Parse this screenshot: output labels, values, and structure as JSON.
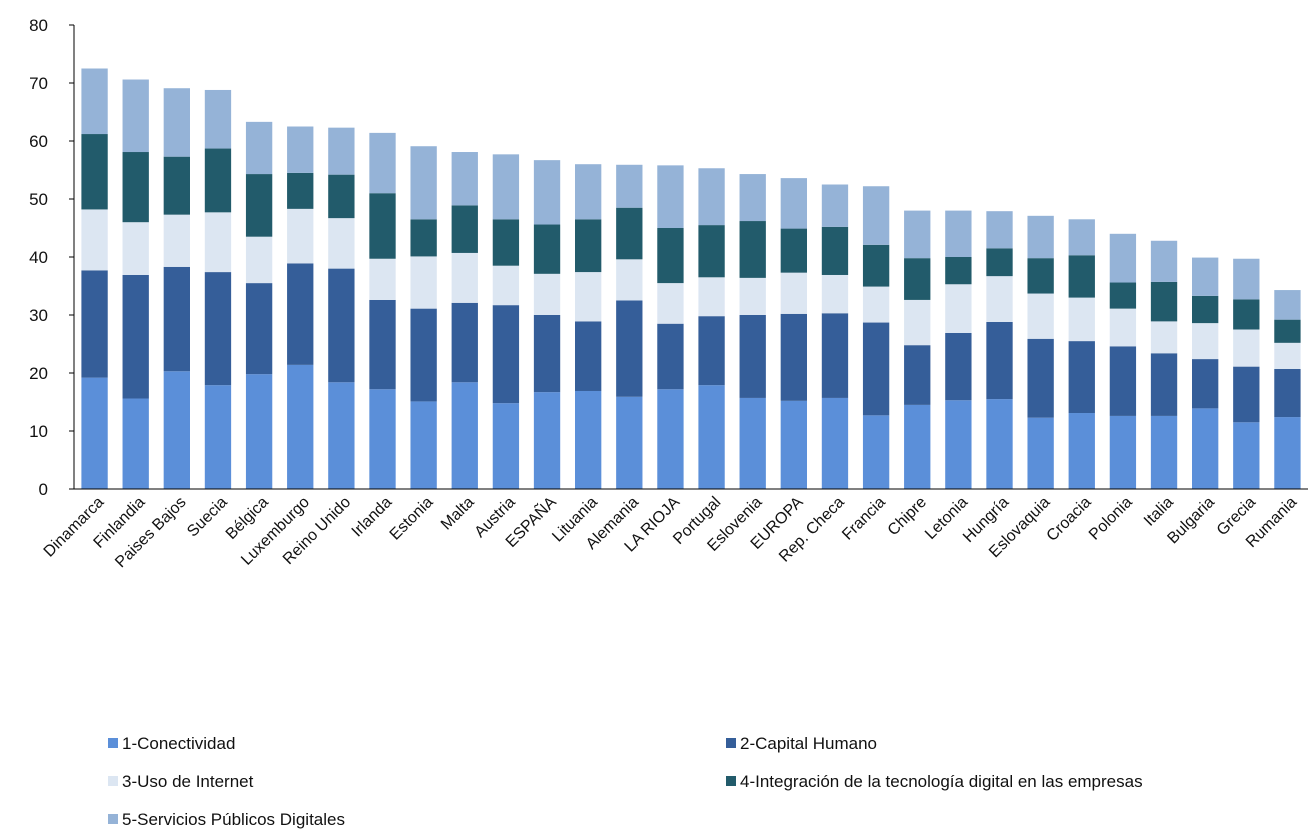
{
  "chart_data": {
    "type": "bar",
    "stacked": true,
    "orientation": "vertical",
    "ylim": [
      0,
      80
    ],
    "yticks": [
      0,
      10,
      20,
      30,
      40,
      50,
      60,
      70,
      80
    ],
    "grid": false,
    "legend_position": "bottom",
    "categories": [
      "Dinamarca",
      "Finlandia",
      "Paises Bajos",
      "Suecia",
      "Bélgica",
      "Luxemburgo",
      "Reino Unido",
      "Irlanda",
      "Estonia",
      "Malta",
      "Austria",
      "ESPAÑA",
      "Lituania",
      "Alemania",
      "LA RIOJA",
      "Portugal",
      "Eslovenia",
      "EUROPA",
      "Rep. Checa",
      "Francia",
      "Chipre",
      "Letonia",
      "Hungría",
      "Eslovaquia",
      "Croacia",
      "Polonia",
      "Italia",
      "Bulgaria",
      "Grecia",
      "Rumania"
    ],
    "series": [
      {
        "name": "1-Conectividad",
        "color": "#5b8fd9",
        "values": [
          19.2,
          15.6,
          20.3,
          17.9,
          19.8,
          21.4,
          18.4,
          17.2,
          15.1,
          18.4,
          14.8,
          16.7,
          16.9,
          15.9,
          17.2,
          17.9,
          15.7,
          15.2,
          15.7,
          12.7,
          14.5,
          15.3,
          15.5,
          12.3,
          13.1,
          12.6,
          12.6,
          13.9,
          11.5,
          12.4
        ]
      },
      {
        "name": "2-Capital Humano",
        "color": "#355e99",
        "values": [
          18.5,
          21.3,
          18.0,
          19.5,
          15.7,
          17.5,
          19.6,
          15.4,
          16.0,
          13.7,
          16.9,
          13.3,
          12.0,
          16.6,
          11.3,
          11.9,
          14.3,
          15.0,
          14.6,
          16.0,
          10.3,
          11.6,
          13.3,
          13.6,
          12.4,
          12.0,
          10.8,
          8.5,
          9.6,
          8.3
        ]
      },
      {
        "name": "3-Uso de Internet",
        "color": "#dce6f2",
        "values": [
          10.5,
          9.1,
          9.0,
          10.3,
          8.0,
          9.4,
          8.7,
          7.1,
          9.0,
          8.6,
          6.8,
          7.1,
          8.5,
          7.1,
          7.0,
          6.7,
          6.4,
          7.1,
          6.6,
          6.2,
          7.8,
          8.4,
          7.9,
          7.8,
          7.5,
          6.5,
          5.5,
          6.2,
          6.4,
          4.5
        ]
      },
      {
        "name": "4-Integración de la tecnología digital en las empresas",
        "color": "#225b6b",
        "values": [
          13.0,
          12.1,
          10.0,
          11.0,
          10.8,
          6.2,
          7.5,
          11.3,
          6.4,
          8.2,
          8.0,
          8.5,
          9.1,
          8.9,
          9.5,
          9.0,
          9.8,
          7.6,
          8.3,
          7.2,
          7.2,
          4.7,
          4.8,
          6.1,
          7.3,
          4.5,
          6.8,
          4.7,
          5.2,
          4.0
        ]
      },
      {
        "name": "5-Servicios Públicos Digitales",
        "color": "#95b3d7",
        "values": [
          11.3,
          12.5,
          11.8,
          10.1,
          9.0,
          8.0,
          8.1,
          10.4,
          12.6,
          9.2,
          11.2,
          11.1,
          9.5,
          7.4,
          10.8,
          9.8,
          8.1,
          8.7,
          7.3,
          10.1,
          8.2,
          8.0,
          6.4,
          7.3,
          6.2,
          8.4,
          7.1,
          6.6,
          7.0,
          5.1
        ]
      }
    ]
  }
}
